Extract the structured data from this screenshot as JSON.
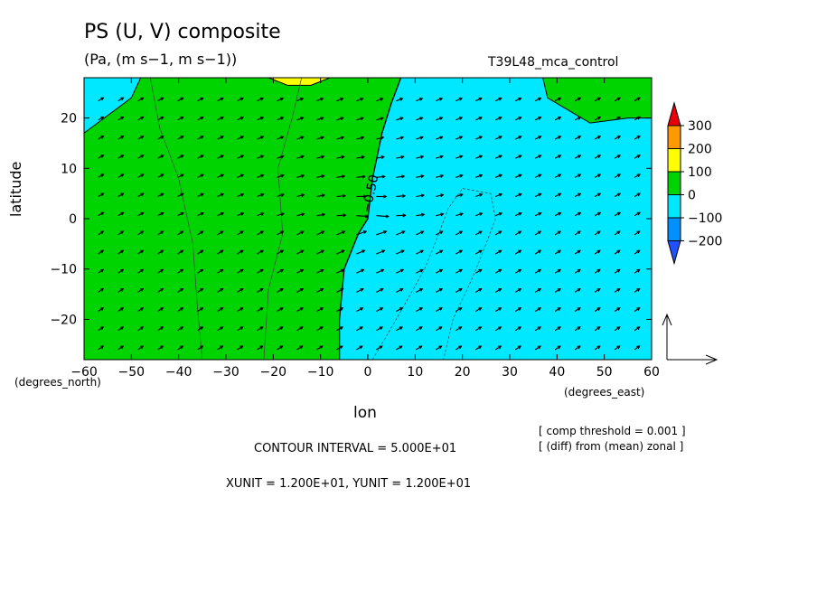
{
  "chart_data": {
    "type": "contour-vector",
    "title": "PS (U, V) composite",
    "units_line": "(Pa, (m s−1, m s−1))",
    "run_label": "T39L48_mca_control",
    "xlabel": "lon",
    "ylabel": "latitude",
    "x_unit_label": "(degrees_east)",
    "y_unit_label": "(degrees_north)",
    "xlim": [
      -60,
      60
    ],
    "ylim": [
      -28,
      28
    ],
    "x_ticks": [
      -60,
      -50,
      -40,
      -30,
      -20,
      -10,
      0,
      10,
      20,
      30,
      40,
      50,
      60
    ],
    "x_tick_labels": [
      "−60",
      "−50",
      "−40",
      "−30",
      "−20",
      "−10",
      "0",
      "10",
      "20",
      "30",
      "40",
      "50",
      "60"
    ],
    "y_ticks": [
      -20,
      -10,
      0,
      10,
      20
    ],
    "y_tick_labels": [
      "−20",
      "−10",
      "0",
      "10",
      "20"
    ],
    "contour_label": "−0.50",
    "colorbar": {
      "labels": [
        "300",
        "200",
        "100",
        "0",
        "−100",
        "−200"
      ],
      "colors": [
        "#e8000b",
        "#ff9900",
        "#ffff00",
        "#00d400",
        "#00e8ff",
        "#0090ff",
        "#2050ff"
      ]
    },
    "regions": {
      "positive_color": "#00d400",
      "negative_color": "#00e8ff",
      "high_color": "#ffff00",
      "zero_line_lon": [
        [
          -6,
          -28
        ],
        [
          -6,
          -20
        ],
        [
          -5,
          -10
        ],
        [
          -2,
          -3
        ],
        [
          0,
          0
        ],
        [
          1,
          8
        ],
        [
          3,
          17
        ],
        [
          5,
          23
        ],
        [
          7,
          28
        ]
      ],
      "nw_negative_lon_lat": [
        [
          -60,
          17
        ],
        [
          -50,
          24
        ],
        [
          -48,
          28
        ],
        [
          -60,
          28
        ]
      ],
      "ne_positive_lon_lat": [
        [
          37,
          28
        ],
        [
          38,
          24
        ],
        [
          47,
          19
        ],
        [
          55,
          20
        ],
        [
          60,
          20
        ],
        [
          60,
          28
        ]
      ],
      "high_lon_lat": [
        [
          -21,
          28
        ],
        [
          -17,
          26.5
        ],
        [
          -12,
          26.5
        ],
        [
          -8,
          28
        ]
      ]
    },
    "threshold_note": "[ comp threshold = 0.001 ]",
    "diff_note": "[ (diff) from (mean) zonal ]",
    "contour_interval": "CONTOUR INTERVAL = 5.000E+01",
    "xyunit": "XUNIT = 1.200E+01, YUNIT = 1.200E+01"
  }
}
